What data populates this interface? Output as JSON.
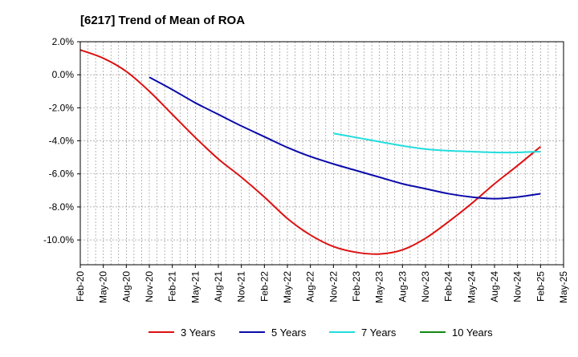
{
  "chart_data": {
    "type": "line",
    "title": "[6217]  Trend of Mean of ROA",
    "xlabel": "",
    "ylabel": "",
    "ylim": [
      -11.5,
      2.0
    ],
    "y_ticks": [
      2.0,
      0.0,
      -2.0,
      -4.0,
      -6.0,
      -8.0,
      -10.0
    ],
    "y_tick_labels": [
      "2.0%",
      "0.0%",
      "-2.0%",
      "-4.0%",
      "-6.0%",
      "-8.0%",
      "-10.0%"
    ],
    "x_tick_labels": [
      "Feb-20",
      "May-20",
      "Aug-20",
      "Nov-20",
      "Feb-21",
      "May-21",
      "Aug-21",
      "Nov-21",
      "Feb-22",
      "May-22",
      "Aug-22",
      "Nov-22",
      "Feb-23",
      "May-23",
      "Aug-23",
      "Nov-23",
      "Feb-24",
      "May-24",
      "Aug-24",
      "Nov-24",
      "Feb-25",
      "May-25"
    ],
    "x_range_months": [
      0,
      63
    ],
    "grid": true,
    "legend_position": "bottom",
    "series": [
      {
        "name": "3 Years",
        "color": "#dd1111",
        "points": [
          [
            0,
            1.5
          ],
          [
            3,
            1.0
          ],
          [
            6,
            0.2
          ],
          [
            9,
            -1.0
          ],
          [
            12,
            -2.4
          ],
          [
            15,
            -3.8
          ],
          [
            18,
            -5.1
          ],
          [
            21,
            -6.2
          ],
          [
            24,
            -7.4
          ],
          [
            27,
            -8.7
          ],
          [
            30,
            -9.7
          ],
          [
            33,
            -10.4
          ],
          [
            36,
            -10.75
          ],
          [
            39,
            -10.85
          ],
          [
            42,
            -10.6
          ],
          [
            45,
            -9.9
          ],
          [
            48,
            -8.9
          ],
          [
            51,
            -7.8
          ],
          [
            54,
            -6.6
          ],
          [
            57,
            -5.5
          ],
          [
            60,
            -4.35
          ]
        ]
      },
      {
        "name": "5 Years",
        "color": "#0a0aaa",
        "points": [
          [
            9,
            -0.15
          ],
          [
            12,
            -0.9
          ],
          [
            15,
            -1.7
          ],
          [
            18,
            -2.4
          ],
          [
            21,
            -3.1
          ],
          [
            24,
            -3.75
          ],
          [
            27,
            -4.4
          ],
          [
            30,
            -4.95
          ],
          [
            33,
            -5.4
          ],
          [
            36,
            -5.8
          ],
          [
            39,
            -6.2
          ],
          [
            42,
            -6.6
          ],
          [
            45,
            -6.9
          ],
          [
            48,
            -7.2
          ],
          [
            51,
            -7.4
          ],
          [
            54,
            -7.5
          ],
          [
            57,
            -7.4
          ],
          [
            60,
            -7.2
          ]
        ]
      },
      {
        "name": "7 Years",
        "color": "#22dddd",
        "points": [
          [
            33,
            -3.55
          ],
          [
            36,
            -3.8
          ],
          [
            39,
            -4.05
          ],
          [
            42,
            -4.3
          ],
          [
            45,
            -4.5
          ],
          [
            48,
            -4.6
          ],
          [
            51,
            -4.65
          ],
          [
            54,
            -4.7
          ],
          [
            57,
            -4.7
          ],
          [
            60,
            -4.65
          ]
        ]
      },
      {
        "name": "10 Years",
        "color": "#118811",
        "points": []
      }
    ]
  }
}
